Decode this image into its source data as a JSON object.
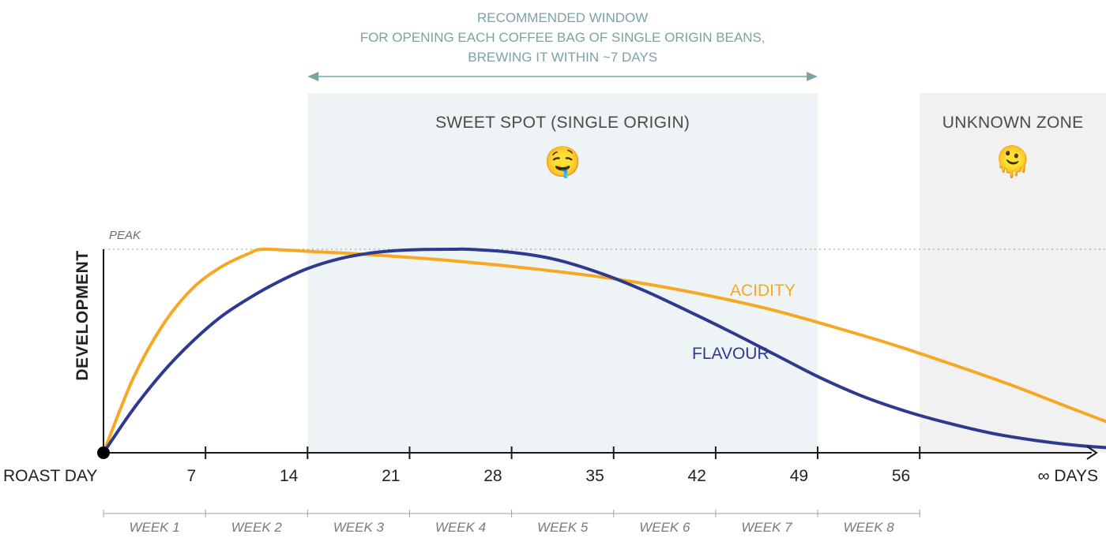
{
  "chart_data": {
    "type": "line",
    "title": "",
    "xlabel": "",
    "ylabel": "DEVELOPMENT",
    "x_unit": "DAYS",
    "xlim": [
      0,
      70
    ],
    "ylim": [
      0,
      1
    ],
    "x_ticks": [
      {
        "value": 0,
        "label": "ROAST DAY"
      },
      {
        "value": 7,
        "label": "7"
      },
      {
        "value": 14,
        "label": "14"
      },
      {
        "value": 21,
        "label": "21"
      },
      {
        "value": 28,
        "label": "28"
      },
      {
        "value": 35,
        "label": "35"
      },
      {
        "value": 42,
        "label": "42"
      },
      {
        "value": 49,
        "label": "49"
      },
      {
        "value": 56,
        "label": "56"
      }
    ],
    "infinity_label": "∞ DAYS",
    "peak_label": "PEAK",
    "peak_value": 1.0,
    "weeks": [
      {
        "label": "WEEK 1",
        "start": 0,
        "end": 7
      },
      {
        "label": "WEEK 2",
        "start": 7,
        "end": 14
      },
      {
        "label": "WEEK 3",
        "start": 14,
        "end": 21
      },
      {
        "label": "WEEK 4",
        "start": 21,
        "end": 28
      },
      {
        "label": "WEEK 5",
        "start": 28,
        "end": 35
      },
      {
        "label": "WEEK 6",
        "start": 35,
        "end": 42
      },
      {
        "label": "WEEK 7",
        "start": 42,
        "end": 49
      },
      {
        "label": "WEEK 8",
        "start": 49,
        "end": 56
      }
    ],
    "zones": [
      {
        "label": "SWEET SPOT (SINGLE ORIGIN)",
        "start": 14,
        "end": 49,
        "color": "#eef4f5",
        "emoji": "🤤"
      },
      {
        "label": "UNKNOWN ZONE",
        "start": 56,
        "end": 70,
        "color": "#f1f1f1",
        "emoji": "🫠"
      }
    ],
    "recommended_window": {
      "lines": [
        "RECOMMENDED WINDOW",
        "FOR OPENING EACH COFFEE BAG OF SINGLE ORIGIN BEANS,",
        "BREWING IT WITHIN ~7 DAYS"
      ],
      "start": 14,
      "end": 49,
      "color": "#7ba3a5"
    },
    "series": [
      {
        "name": "ACIDITY",
        "color": "#f7a823",
        "x": [
          0,
          2,
          4,
          6,
          8,
          10,
          11,
          14,
          18,
          22,
          26,
          30,
          34,
          38,
          42,
          46,
          50,
          54,
          58,
          62,
          66,
          70
        ],
        "y": [
          0,
          0.36,
          0.62,
          0.8,
          0.91,
          0.98,
          1.0,
          0.99,
          0.975,
          0.955,
          0.93,
          0.9,
          0.865,
          0.82,
          0.765,
          0.7,
          0.62,
          0.535,
          0.44,
          0.34,
          0.23,
          0.12
        ]
      },
      {
        "name": "FLAVOUR",
        "color": "#2e3990",
        "x": [
          0,
          2,
          4,
          6,
          8,
          10,
          12,
          14,
          16,
          18,
          20,
          22,
          24,
          25,
          28,
          31,
          34,
          37,
          40,
          43,
          46,
          49,
          52,
          55,
          58,
          61,
          64,
          67,
          70
        ],
        "y": [
          0,
          0.21,
          0.39,
          0.54,
          0.665,
          0.76,
          0.84,
          0.905,
          0.95,
          0.978,
          0.993,
          0.999,
          1.0,
          1.0,
          0.985,
          0.95,
          0.885,
          0.8,
          0.7,
          0.595,
          0.485,
          0.375,
          0.28,
          0.205,
          0.145,
          0.095,
          0.06,
          0.035,
          0.02
        ]
      }
    ]
  }
}
